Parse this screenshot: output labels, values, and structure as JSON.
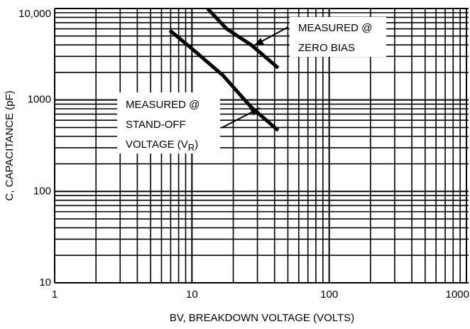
{
  "chart_data": {
    "type": "line",
    "x_label": "BV, BREAKDOWN VOLTAGE (VOLTS)",
    "y_label": "C, CAPACITANCE (pF)",
    "xscale": "log",
    "yscale": "log",
    "grid": true,
    "xlim": [
      1,
      1000
    ],
    "ylim": [
      10,
      10000
    ],
    "xticks": [
      1,
      10,
      100,
      1000
    ],
    "yticks": [
      10,
      100,
      1000,
      {
        "value": 10000,
        "label": "10,000"
      }
    ],
    "series": [
      {
        "color": "#000000",
        "x": [
          13,
          17.9,
          27,
          42.5
        ],
        "values": [
          10000,
          6000,
          4000,
          2240
        ]
      },
      {
        "color": "#000000",
        "x": [
          6.9,
          10,
          16.8,
          27,
          42.5
        ],
        "values": [
          5760,
          3640,
          1860,
          835,
          464
        ]
      }
    ],
    "annotations": [
      {
        "lines": [
          "MEASURED @",
          "ZERO BIAS"
        ]
      },
      {
        "lines": [
          "MEASURED @",
          "STAND-OFF"
        ],
        "last": {
          "text": "VOLTAGE (V",
          "sub": "R",
          "tail": ")"
        }
      }
    ]
  }
}
